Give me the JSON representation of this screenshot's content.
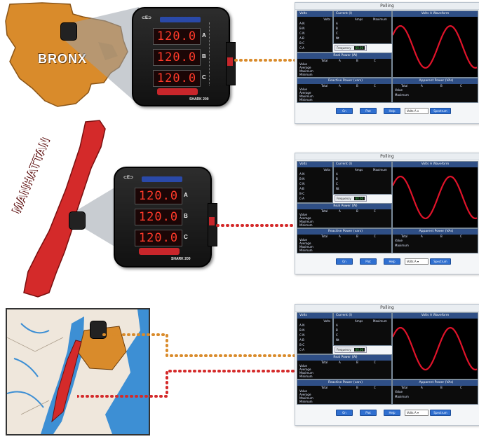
{
  "regions": {
    "bronx_label": "BRONX",
    "manhattan_label": "MANHATTAN"
  },
  "meter": {
    "readings": [
      "120.0",
      "120.0",
      "120.0"
    ],
    "phase_letters": [
      "A",
      "B",
      "C"
    ],
    "brand": "SHARK 200",
    "display_color": "#ff3a2a"
  },
  "panel": {
    "title": "Polling",
    "volts_header": "Volts",
    "volts_col": "Volts",
    "volts_rows": [
      "A-N",
      "B-N",
      "C-N",
      "A-B",
      "B-C",
      "C-A"
    ],
    "current_header": "Current (I)",
    "current_cols": [
      "Amps",
      "Maximum"
    ],
    "current_rows": [
      "A",
      "B",
      "C",
      "Nt"
    ],
    "frequency_label": "Frequency",
    "frequency_value": "60.00",
    "waveform_header": "Volts A Waveform",
    "real_power_header": "Real Power (W)",
    "reactive_power_header": "Reactive Power (vars)",
    "apparent_power_header": "Apparent Power (VAs)",
    "power_cols": [
      "Total",
      "A",
      "B",
      "C"
    ],
    "power_rows": [
      "Value",
      "Average",
      "Maximum",
      "Minimum"
    ],
    "apparent_rows": [
      "Value",
      "Maximum"
    ],
    "buttons": [
      "On",
      "Plot",
      "Help"
    ],
    "select_value": "Volts A",
    "spectrum_button": "Spectrum",
    "wave_color": "#e0132a"
  },
  "colors": {
    "bronx": "#d98b2b",
    "manhattan": "#d42a2a",
    "water": "#3d8fd4",
    "bronx_dots": "#d98b2b",
    "manhattan_dots": "#d42a2a"
  }
}
